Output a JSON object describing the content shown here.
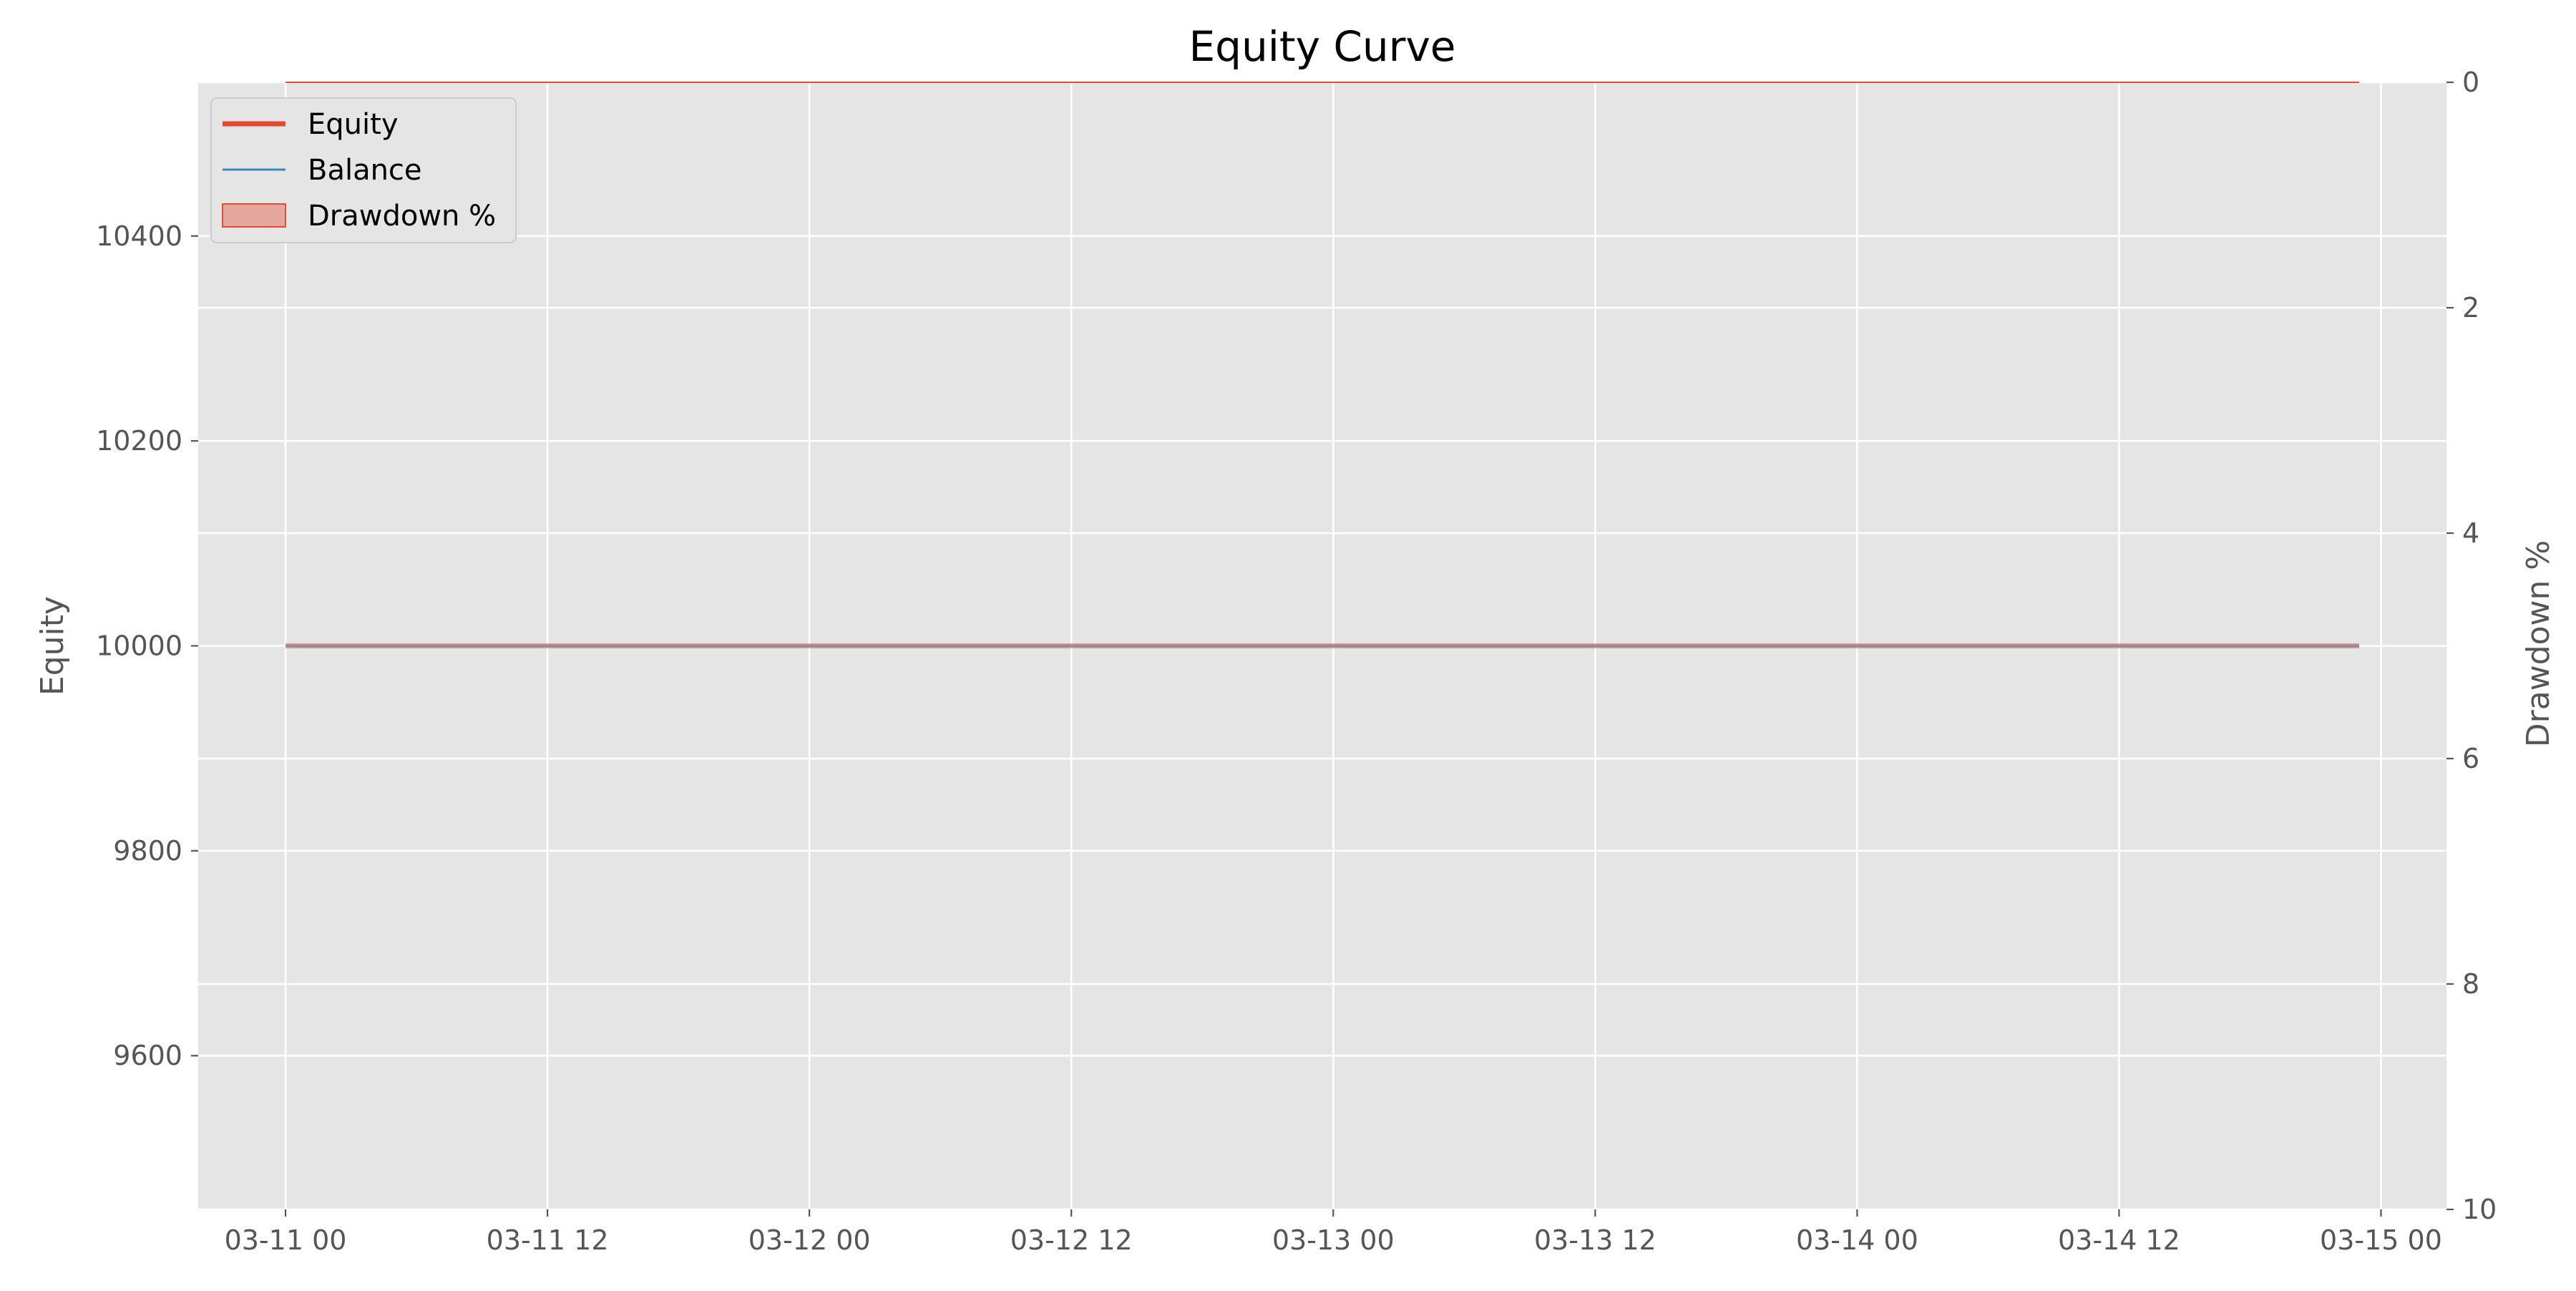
{
  "chart_data": {
    "type": "line",
    "title": "Equity Curve",
    "xlabel": "",
    "ylabel": "Equity",
    "y2label": "Drawdown %",
    "x_ticks": [
      "03-11 00",
      "03-11 12",
      "03-12 00",
      "03-12 12",
      "03-13 00",
      "03-13 12",
      "03-14 00",
      "03-14 12",
      "03-15 00"
    ],
    "xlim": [
      "03-10 20",
      "03-15 03"
    ],
    "ylim": [
      9450,
      10550
    ],
    "y_ticks": [
      9600,
      9800,
      10000,
      10200,
      10400
    ],
    "y2lim": [
      10,
      0
    ],
    "y2_ticks": [
      0,
      2,
      4,
      6,
      8,
      10
    ],
    "grid": true,
    "legend_position": "top-left",
    "series": [
      {
        "name": "Equity",
        "axis": "left",
        "color": "#E24A33",
        "x": [
          "03-11 00",
          "03-14 23"
        ],
        "values": [
          10000,
          10000
        ]
      },
      {
        "name": "Balance",
        "axis": "left",
        "color": "#348ABD",
        "x": [
          "03-11 00",
          "03-14 23"
        ],
        "values": [
          10000,
          10000
        ]
      },
      {
        "name": "Drawdown %",
        "axis": "right",
        "type": "area",
        "color": "#E24A33",
        "x": [
          "03-11 00",
          "03-14 23"
        ],
        "values": [
          0,
          0
        ]
      }
    ]
  },
  "colors": {
    "plot_background": "#E5E5E5",
    "grid": "#FFFFFF",
    "tick_label": "#555555",
    "title": "#000000"
  }
}
